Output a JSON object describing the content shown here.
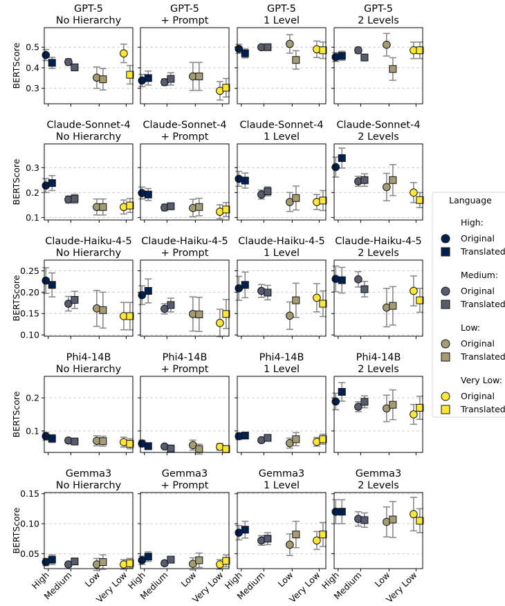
{
  "chart_data": {
    "type": "scatter",
    "ylabel": "BERTScore",
    "categories": [
      "High",
      "Medium",
      "Low",
      "Very Low"
    ],
    "conditions": [
      "No Hierarchy",
      "+ Prompt",
      "1 Level",
      "2 Levels"
    ],
    "colors": {
      "High": "#002051",
      "Medium": "#575c6e",
      "Low": "#a59c74",
      "Very Low": "#fde737"
    },
    "legend": {
      "title": "Language",
      "placement": "right",
      "groups": [
        {
          "label": "High:",
          "original": "Original",
          "translated": "Translated",
          "color": "#002051"
        },
        {
          "label": "Medium:",
          "original": "Original",
          "translated": "Translated",
          "color": "#575c6e"
        },
        {
          "label": "Low:",
          "original": "Original",
          "translated": "Translated",
          "color": "#a59c74"
        },
        {
          "label": "Very Low:",
          "original": "Original",
          "translated": "Translated",
          "color": "#fde737"
        }
      ]
    },
    "grid": "horizontal dashed",
    "rows": [
      {
        "model": "GPT-5",
        "ylim": [
          0.225,
          0.595
        ],
        "yticks": [
          0.3,
          0.4,
          0.5
        ],
        "ytick_labels": [
          "0.3",
          "0.4",
          "0.5"
        ],
        "panels": [
          {
            "title": "GPT-5\nNo Hierarchy",
            "original": [
              0.462,
              0.428,
              0.352,
              0.47
            ],
            "translated": [
              0.424,
              0.402,
              0.344,
              0.366
            ],
            "orig_err": [
              0.027,
              0.016,
              0.052,
              0.045
            ],
            "trans_err": [
              0.027,
              0.016,
              0.052,
              0.045
            ]
          },
          {
            "title": "GPT-5\n+ Prompt",
            "original": [
              0.338,
              0.33,
              0.358,
              0.288
            ],
            "translated": [
              0.35,
              0.346,
              0.358,
              0.303
            ],
            "orig_err": [
              0.03,
              0.016,
              0.068,
              0.045
            ],
            "trans_err": [
              0.034,
              0.03,
              0.068,
              0.045
            ]
          },
          {
            "title": "GPT-5\n1 Level",
            "original": [
              0.492,
              0.5,
              0.516,
              0.49
            ],
            "translated": [
              0.47,
              0.5,
              0.438,
              0.485
            ],
            "orig_err": [
              0.022,
              0.01,
              0.045,
              0.04
            ],
            "trans_err": [
              0.022,
              0.01,
              0.045,
              0.04
            ]
          },
          {
            "title": "GPT-5\n2 Levels",
            "original": [
              0.452,
              0.485,
              0.512,
              0.485
            ],
            "translated": [
              0.458,
              0.45,
              0.394,
              0.485
            ],
            "orig_err": [
              0.022,
              0.015,
              0.055,
              0.04
            ],
            "trans_err": [
              0.022,
              0.015,
              0.055,
              0.04
            ]
          }
        ]
      },
      {
        "model": "Claude-Sonnet-4",
        "ylim": [
          0.09,
          0.395
        ],
        "yticks": [
          0.1,
          0.2,
          0.3
        ],
        "ytick_labels": [
          "0.1",
          "0.2",
          "0.3"
        ],
        "panels": [
          {
            "title": "Claude-Sonnet-4\nNo Hierarchy",
            "original": [
              0.228,
              0.172,
              0.142,
              0.142
            ],
            "translated": [
              0.238,
              0.175,
              0.142,
              0.148
            ],
            "orig_err": [
              0.028,
              0.014,
              0.032,
              0.028
            ],
            "trans_err": [
              0.03,
              0.018,
              0.032,
              0.028
            ]
          },
          {
            "title": "Claude-Sonnet-4\n+ Prompt",
            "original": [
              0.198,
              0.14,
              0.138,
              0.123
            ],
            "translated": [
              0.192,
              0.145,
              0.142,
              0.132
            ],
            "orig_err": [
              0.024,
              0.013,
              0.035,
              0.028
            ],
            "trans_err": [
              0.024,
              0.013,
              0.035,
              0.028
            ]
          },
          {
            "title": "Claude-Sonnet-4\n1 Level",
            "original": [
              0.255,
              0.192,
              0.162,
              0.162
            ],
            "translated": [
              0.248,
              0.205,
              0.178,
              0.168
            ],
            "orig_err": [
              0.03,
              0.018,
              0.038,
              0.03
            ],
            "trans_err": [
              0.03,
              0.018,
              0.048,
              0.04
            ]
          },
          {
            "title": "Claude-Sonnet-4\n2 Levels",
            "original": [
              0.302,
              0.245,
              0.222,
              0.2
            ],
            "translated": [
              0.338,
              0.25,
              0.25,
              0.17
            ],
            "orig_err": [
              0.04,
              0.02,
              0.055,
              0.04
            ],
            "trans_err": [
              0.04,
              0.025,
              0.062,
              0.03
            ]
          }
        ]
      },
      {
        "model": "Claude-Haiku-4-5",
        "ylim": [
          0.097,
          0.275
        ],
        "yticks": [
          0.1,
          0.15,
          0.2,
          0.25
        ],
        "ytick_labels": [
          "0.10",
          "0.15",
          "0.20",
          "0.25"
        ],
        "panels": [
          {
            "title": "Claude-Haiku-4-5\nNo Hierarchy",
            "original": [
              0.227,
              0.173,
              0.162,
              0.144
            ],
            "translated": [
              0.217,
              0.182,
              0.158,
              0.144
            ],
            "orig_err": [
              0.03,
              0.017,
              0.042,
              0.032
            ],
            "trans_err": [
              0.028,
              0.02,
              0.042,
              0.032
            ]
          },
          {
            "title": "Claude-Haiku-4-5\n+ Prompt",
            "original": [
              0.193,
              0.161,
              0.149,
              0.128
            ],
            "translated": [
              0.203,
              0.17,
              0.148,
              0.149
            ],
            "orig_err": [
              0.022,
              0.012,
              0.04,
              0.032
            ],
            "trans_err": [
              0.028,
              0.016,
              0.04,
              0.034
            ]
          },
          {
            "title": "Claude-Haiku-4-5\n1 Level",
            "original": [
              0.209,
              0.203,
              0.145,
              0.187
            ],
            "translated": [
              0.217,
              0.199,
              0.181,
              0.173
            ],
            "orig_err": [
              0.028,
              0.015,
              0.032,
              0.033
            ],
            "trans_err": [
              0.03,
              0.017,
              0.04,
              0.03
            ]
          },
          {
            "title": "Claude-Haiku-4-5\n2 Levels",
            "original": [
              0.231,
              0.23,
              0.164,
              0.203
            ],
            "translated": [
              0.228,
              0.207,
              0.168,
              0.181
            ],
            "orig_err": [
              0.03,
              0.018,
              0.045,
              0.035
            ],
            "trans_err": [
              0.03,
              0.018,
              0.045,
              0.028
            ]
          }
        ]
      },
      {
        "model": "Phi4-14B",
        "ylim": [
          0.035,
          0.265
        ],
        "yticks": [
          0.1,
          0.2
        ],
        "ytick_labels": [
          "0.1",
          "0.2"
        ],
        "panels": [
          {
            "title": "Phi4-14B\nNo Hierarchy",
            "original": [
              0.084,
              0.071,
              0.07,
              0.066
            ],
            "translated": [
              0.077,
              0.068,
              0.069,
              0.061
            ],
            "orig_err": [
              0.012,
              0.006,
              0.015,
              0.015
            ],
            "trans_err": [
              0.012,
              0.006,
              0.015,
              0.015
            ]
          },
          {
            "title": "Phi4-14B\n+ Prompt",
            "original": [
              0.062,
              0.053,
              0.057,
              0.052
            ],
            "translated": [
              0.054,
              0.047,
              0.045,
              0.045
            ],
            "orig_err": [
              0.01,
              0.005,
              0.015,
              0.01
            ],
            "trans_err": [
              0.01,
              0.005,
              0.015,
              0.01
            ]
          },
          {
            "title": "Phi4-14B\n1 Level",
            "original": [
              0.084,
              0.072,
              0.063,
              0.067
            ],
            "translated": [
              0.086,
              0.079,
              0.075,
              0.075
            ],
            "orig_err": [
              0.01,
              0.006,
              0.015,
              0.013
            ],
            "trans_err": [
              0.01,
              0.006,
              0.02,
              0.015
            ]
          },
          {
            "title": "Phi4-14B\n2 Levels",
            "original": [
              0.189,
              0.173,
              0.168,
              0.15
            ],
            "translated": [
              0.218,
              0.188,
              0.179,
              0.17
            ],
            "orig_err": [
              0.025,
              0.015,
              0.04,
              0.03
            ],
            "trans_err": [
              0.028,
              0.018,
              0.045,
              0.035
            ]
          }
        ]
      },
      {
        "model": "Gemma3",
        "ylim": [
          0.025,
          0.152
        ],
        "yticks": [
          0.05,
          0.1,
          0.15
        ],
        "ytick_labels": [
          "0.05",
          "0.10",
          "0.15"
        ],
        "panels": [
          {
            "title": "Gemma3\nNo Hierarchy",
            "original": [
              0.036,
              0.032,
              0.032,
              0.032
            ],
            "translated": [
              0.04,
              0.037,
              0.036,
              0.034
            ],
            "orig_err": [
              0.006,
              0.004,
              0.01,
              0.008
            ],
            "trans_err": [
              0.008,
              0.005,
              0.012,
              0.008
            ]
          },
          {
            "title": "Gemma3\n+ Prompt",
            "original": [
              0.039,
              0.034,
              0.033,
              0.032
            ],
            "translated": [
              0.045,
              0.04,
              0.039,
              0.038
            ],
            "orig_err": [
              0.007,
              0.004,
              0.01,
              0.008
            ],
            "trans_err": [
              0.008,
              0.005,
              0.012,
              0.01
            ]
          },
          {
            "title": "Gemma3\n1 Level",
            "original": [
              0.085,
              0.072,
              0.065,
              0.072
            ],
            "translated": [
              0.09,
              0.075,
              0.082,
              0.082
            ],
            "orig_err": [
              0.012,
              0.008,
              0.018,
              0.015
            ],
            "trans_err": [
              0.014,
              0.01,
              0.022,
              0.02
            ]
          },
          {
            "title": "Gemma3\n2 Levels",
            "original": [
              0.12,
              0.108,
              0.103,
              0.116
            ],
            "translated": [
              0.12,
              0.106,
              0.107,
              0.105
            ],
            "orig_err": [
              0.02,
              0.012,
              0.025,
              0.028
            ],
            "trans_err": [
              0.02,
              0.012,
              0.03,
              0.02
            ]
          }
        ]
      }
    ]
  }
}
